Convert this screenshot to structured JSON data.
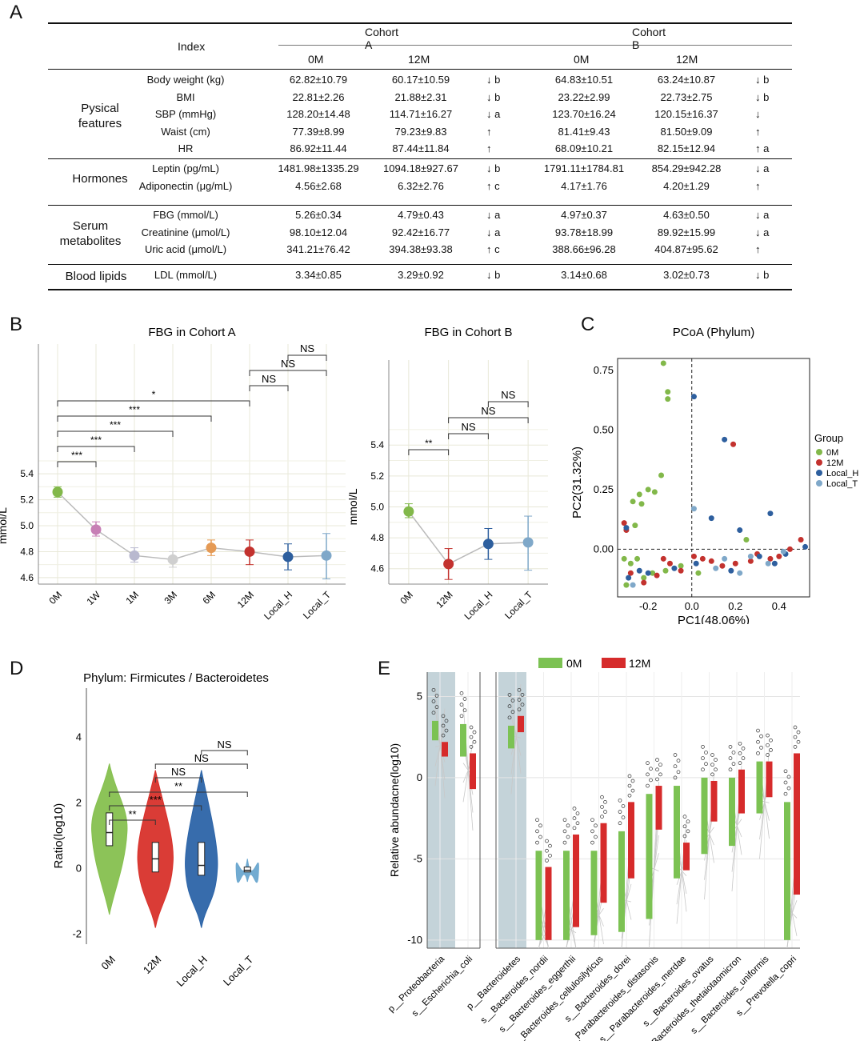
{
  "panels": {
    "A": "A",
    "B": "B",
    "C": "C",
    "D": "D",
    "E": "E"
  },
  "table": {
    "header": {
      "index": "Index",
      "cohortA": "Cohort A",
      "cohortB": "Cohort B",
      "m0": "0M",
      "m12": "12M"
    },
    "groups": [
      {
        "name": "Pysical\nfeatures",
        "rows": [
          [
            "Body weight (kg)",
            "62.82±10.79",
            "60.17±10.59",
            "↓ b",
            "64.83±10.51",
            "63.24±10.87",
            "↓ b"
          ],
          [
            "BMI",
            "22.81±2.26",
            "21.88±2.31",
            "↓ b",
            "23.22±2.99",
            "22.73±2.75",
            "↓ b"
          ],
          [
            "SBP (mmHg)",
            "128.20±14.48",
            "114.71±16.27",
            "↓ a",
            "123.70±16.24",
            "120.15±16.37",
            "↓"
          ],
          [
            "Waist (cm)",
            "77.39±8.99",
            "79.23±9.83",
            "↑",
            "81.41±9.43",
            "81.50±9.09",
            "↑"
          ],
          [
            "HR",
            "86.92±11.44",
            "87.44±11.84",
            "↑",
            "68.09±10.21",
            "82.15±12.94",
            "↑ a"
          ]
        ]
      },
      {
        "name": "Hormones",
        "rows": [
          [
            "Leptin (pg/mL)",
            "1481.98±1335.29",
            "1094.18±927.67",
            "↓ b",
            "1791.11±1784.81",
            "854.29±942.28",
            "↓ a"
          ],
          [
            "Adiponectin (μg/mL)",
            "4.56±2.68",
            "6.32±2.76",
            "↑ c",
            "4.17±1.76",
            "4.20±1.29",
            "↑"
          ]
        ]
      },
      {
        "name": "Serum\nmetabolites",
        "rows": [
          [
            "FBG (mmol/L)",
            "5.26±0.34",
            "4.79±0.43",
            "↓ a",
            "4.97±0.37",
            "4.63±0.50",
            "↓ a"
          ],
          [
            "Creatinine (μmol/L)",
            "98.10±12.04",
            "92.42±16.77",
            "↓ a",
            "93.78±18.99",
            "89.92±15.99",
            "↓ a"
          ],
          [
            "Uric acid (μmol/L)",
            "341.21±76.42",
            "394.38±93.38",
            "↑ c",
            "388.66±96.28",
            "404.87±95.62",
            "↑"
          ]
        ]
      },
      {
        "name": "Blood lipids",
        "rows": [
          [
            "LDL (mmol/L)",
            "3.34±0.85",
            "3.29±0.92",
            "↓ b",
            "3.14±0.68",
            "3.02±0.73",
            "↓ b"
          ]
        ]
      }
    ]
  },
  "chart_data": [
    {
      "type": "line",
      "title": "FBG in Cohort A",
      "ylabel": "mmol/L",
      "categories": [
        "0M",
        "1W",
        "1M",
        "3M",
        "6M",
        "12M",
        "Local_H",
        "Local_T"
      ],
      "values": [
        5.26,
        4.97,
        4.77,
        4.74,
        4.83,
        4.8,
        4.76,
        4.77
      ],
      "err_low": [
        5.22,
        4.92,
        4.72,
        4.68,
        4.77,
        4.7,
        4.66,
        4.59
      ],
      "err_high": [
        5.3,
        5.03,
        4.83,
        4.8,
        4.89,
        4.89,
        4.86,
        4.94
      ],
      "colors": [
        "#82b84a",
        "#c77fb5",
        "#b9b9cf",
        "#cfcfcf",
        "#e59a55",
        "#c3322e",
        "#2e5f9e",
        "#7fa8c9"
      ],
      "yticks": [
        "4.6",
        "4.8",
        "5.0",
        "5.2",
        "5.4"
      ],
      "ylim": [
        4.55,
        6.4
      ],
      "sig": [
        [
          "0M",
          "1W",
          "***"
        ],
        [
          "0M",
          "1M",
          "***"
        ],
        [
          "0M",
          "3M",
          "***"
        ],
        [
          "0M",
          "6M",
          "***"
        ],
        [
          "0M",
          "12M",
          "*"
        ],
        [
          "12M",
          "Local_H",
          "NS"
        ],
        [
          "12M",
          "Local_T",
          "NS"
        ],
        [
          "Local_H",
          "Local_T",
          "NS"
        ]
      ]
    },
    {
      "type": "line",
      "title": "FBG in Cohort B",
      "ylabel": "mmol/L",
      "categories": [
        "0M",
        "12M",
        "Local_H",
        "Local_T"
      ],
      "values": [
        4.97,
        4.63,
        4.76,
        4.77
      ],
      "err_low": [
        4.93,
        4.53,
        4.66,
        4.59
      ],
      "err_high": [
        5.02,
        4.73,
        4.86,
        4.94
      ],
      "colors": [
        "#82b84a",
        "#c3322e",
        "#2e5f9e",
        "#7fa8c9"
      ],
      "yticks": [
        "4.6",
        "4.8",
        "5.0",
        "5.2",
        "5.4"
      ],
      "ylim": [
        4.5,
        5.95
      ],
      "sig": [
        [
          "0M",
          "12M",
          "**"
        ],
        [
          "12M",
          "Local_H",
          "NS"
        ],
        [
          "12M",
          "Local_T",
          "NS"
        ],
        [
          "Local_H",
          "Local_T",
          "NS"
        ]
      ]
    },
    {
      "type": "scatter",
      "title": "PCoA (Phylum)",
      "xlabel": "PC1(48.06%)",
      "ylabel": "PC2(31.32%)",
      "xticks": [
        "-0.2",
        "0.0",
        "0.2",
        "0.4"
      ],
      "xtickv": [
        -0.2,
        0,
        0.2,
        0.4
      ],
      "yticks": [
        "0.00",
        "0.25",
        "0.50",
        "0.75"
      ],
      "ytickv": [
        0,
        0.25,
        0.5,
        0.75
      ],
      "xlim": [
        -0.34,
        0.54
      ],
      "ylim": [
        -0.2,
        0.8
      ],
      "legend_title": "Group",
      "legend": [
        "0M",
        "12M",
        "Local_H",
        "Local_T"
      ],
      "colors": [
        "#82b84a",
        "#c3322e",
        "#2e5f9e",
        "#7fa8c9"
      ],
      "points": [
        [
          -0.13,
          0.78,
          0
        ],
        [
          -0.11,
          0.66,
          0
        ],
        [
          -0.11,
          0.63,
          0
        ],
        [
          -0.14,
          0.31,
          0
        ],
        [
          -0.2,
          0.25,
          0
        ],
        [
          -0.24,
          0.23,
          0
        ],
        [
          -0.17,
          0.24,
          0
        ],
        [
          -0.27,
          0.2,
          0
        ],
        [
          -0.23,
          0.19,
          0
        ],
        [
          -0.26,
          0.1,
          0
        ],
        [
          -0.31,
          -0.04,
          0
        ],
        [
          -0.28,
          -0.06,
          0
        ],
        [
          -0.3,
          -0.15,
          0
        ],
        [
          -0.22,
          -0.12,
          0
        ],
        [
          -0.18,
          -0.1,
          0
        ],
        [
          -0.12,
          -0.09,
          0
        ],
        [
          -0.05,
          -0.07,
          0
        ],
        [
          0.25,
          0.04,
          0
        ],
        [
          0.03,
          -0.1,
          0
        ],
        [
          -0.25,
          -0.04,
          0
        ],
        [
          -0.31,
          0.11,
          1
        ],
        [
          -0.3,
          0.08,
          1
        ],
        [
          -0.28,
          -0.1,
          1
        ],
        [
          -0.22,
          -0.14,
          1
        ],
        [
          -0.16,
          -0.11,
          1
        ],
        [
          -0.1,
          -0.06,
          1
        ],
        [
          -0.05,
          -0.09,
          1
        ],
        [
          0.05,
          -0.04,
          1
        ],
        [
          0.09,
          -0.05,
          1
        ],
        [
          0.14,
          -0.07,
          1
        ],
        [
          0.2,
          -0.06,
          1
        ],
        [
          0.27,
          -0.05,
          1
        ],
        [
          0.3,
          -0.02,
          1
        ],
        [
          0.36,
          -0.04,
          1
        ],
        [
          0.4,
          -0.03,
          1
        ],
        [
          0.45,
          0.0,
          1
        ],
        [
          0.5,
          0.04,
          1
        ],
        [
          0.19,
          0.44,
          1
        ],
        [
          -0.13,
          -0.04,
          1
        ],
        [
          0.01,
          -0.03,
          1
        ],
        [
          0.01,
          0.64,
          2
        ],
        [
          0.15,
          0.46,
          2
        ],
        [
          0.22,
          0.08,
          2
        ],
        [
          0.36,
          0.15,
          2
        ],
        [
          0.09,
          0.13,
          2
        ],
        [
          -0.3,
          0.09,
          2
        ],
        [
          -0.29,
          -0.12,
          2
        ],
        [
          -0.24,
          -0.09,
          2
        ],
        [
          -0.2,
          -0.1,
          2
        ],
        [
          -0.08,
          -0.08,
          2
        ],
        [
          0.02,
          -0.06,
          2
        ],
        [
          0.18,
          -0.09,
          2
        ],
        [
          0.31,
          -0.03,
          2
        ],
        [
          0.43,
          -0.02,
          2
        ],
        [
          0.52,
          0.01,
          2
        ],
        [
          0.38,
          -0.06,
          2
        ],
        [
          0.01,
          0.17,
          3
        ],
        [
          0.15,
          -0.04,
          3
        ],
        [
          0.22,
          -0.1,
          3
        ],
        [
          0.35,
          -0.06,
          3
        ],
        [
          0.27,
          -0.03,
          3
        ],
        [
          -0.27,
          -0.15,
          3
        ],
        [
          0.42,
          -0.01,
          3
        ],
        [
          0.11,
          -0.08,
          3
        ]
      ]
    },
    {
      "type": "violin",
      "title": "Phylum: Firmicutes / Bacteroidetes",
      "ylabel": "Ratio(log10)",
      "categories": [
        "0M",
        "12M",
        "Local_H",
        "Local_T"
      ],
      "medians": [
        1.1,
        0.3,
        0.1,
        -0.05
      ],
      "q1": [
        0.7,
        -0.1,
        -0.2,
        -0.1
      ],
      "q3": [
        1.7,
        0.8,
        0.8,
        0.05
      ],
      "colors": [
        "#86c04f",
        "#d8312b",
        "#2c64a8",
        "#6aa7cf"
      ],
      "yticks": [
        "-2",
        "0",
        "2",
        "4"
      ],
      "ytickv": [
        -2,
        0,
        2,
        4
      ],
      "ylim": [
        -2.3,
        5.5
      ],
      "sig": [
        [
          "0M",
          "12M",
          "**"
        ],
        [
          "0M",
          "Local_H",
          "***"
        ],
        [
          "0M",
          "Local_T",
          "**"
        ],
        [
          "12M",
          "Local_H",
          "NS"
        ],
        [
          "12M",
          "Local_T",
          "NS"
        ],
        [
          "Local_H",
          "Local_T",
          "NS"
        ]
      ]
    },
    {
      "type": "box",
      "ylabel": "Relative abundacne(log10)",
      "legend": [
        "0M",
        "12M"
      ],
      "colors": [
        "#7cc253",
        "#d62b2b"
      ],
      "yticks": [
        "-10",
        "-5",
        "0",
        "5"
      ],
      "ytickv": [
        -10,
        -5,
        0,
        5
      ],
      "ylim": [
        -10.5,
        6.5
      ],
      "categories": [
        "p__Proteobacteria",
        "s__Escherichia_coli",
        "p__Bacteroidetes",
        "s__Bacteroides_nordii",
        "s__Bacteroides_eggerthii",
        "s__Bacteroides_cellulosilyticus",
        "s__Bacteroides_dorei",
        "s__Parabacteroides_distasonis",
        "s__Parabacteroides_merdae",
        "s__Bacteroides_ovatus",
        "s__Bacteroides_thetaiotaomicron",
        "s__Bacteroides_uniformis",
        "s__Prevotella_copri"
      ],
      "median_0M": [
        2.5,
        1.5,
        2.0,
        -9.8,
        -9.8,
        -9.5,
        -9.3,
        -8.5,
        -6.0,
        -4.5,
        -4.0,
        -2.0,
        -9.8
      ],
      "median_12M": [
        1.5,
        -0.5,
        3.0,
        -9.8,
        -9.0,
        -7.5,
        -6.0,
        -3.0,
        -5.5,
        -2.5,
        -2.0,
        -1.0,
        -7.0
      ],
      "q3_0M": [
        3.5,
        3.3,
        3.2,
        -4.5,
        -4.5,
        -4.5,
        -3.3,
        -1.0,
        -0.5,
        0.0,
        0.0,
        1.0,
        -1.5
      ],
      "q3_12M": [
        2.2,
        1.5,
        3.8,
        -5.5,
        -3.5,
        -2.8,
        -1.5,
        -0.5,
        -4.0,
        -0.2,
        0.5,
        1.0,
        1.5
      ]
    }
  ]
}
